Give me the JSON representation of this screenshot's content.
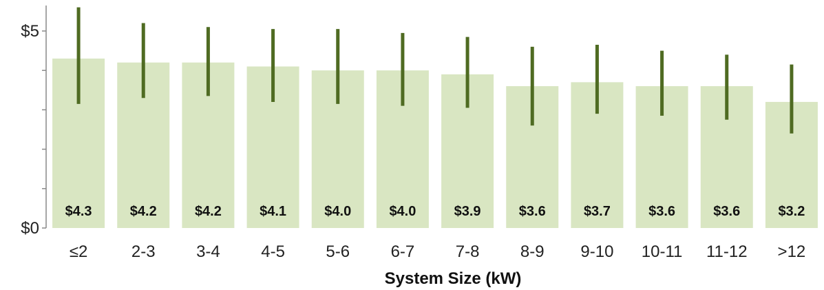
{
  "chart_data": {
    "type": "bar",
    "title": "",
    "xlabel": "System Size (kW)",
    "ylabel": "",
    "ylim": [
      0,
      5.6
    ],
    "yticks": [
      0,
      1,
      2,
      3,
      4,
      5
    ],
    "ytick_labels": [
      "$0",
      "",
      "",
      "",
      "",
      "$5"
    ],
    "grid": false,
    "legend": "none",
    "categories": [
      "≤2",
      "2-3",
      "3-4",
      "4-5",
      "5-6",
      "6-7",
      "7-8",
      "8-9",
      "9-10",
      "10-11",
      "11-12",
      ">12"
    ],
    "values": [
      4.3,
      4.2,
      4.2,
      4.1,
      4.0,
      4.0,
      3.9,
      3.6,
      3.7,
      3.6,
      3.6,
      3.2
    ],
    "data_labels": [
      "$4.3",
      "$4.2",
      "$4.2",
      "$4.1",
      "$4.0",
      "$4.0",
      "$3.9",
      "$3.6",
      "$3.7",
      "$3.6",
      "$3.6",
      "$3.2"
    ],
    "error_low": [
      3.15,
      3.3,
      3.35,
      3.2,
      3.15,
      3.1,
      3.05,
      2.6,
      2.9,
      2.85,
      2.75,
      2.4
    ],
    "error_high": [
      5.6,
      5.2,
      5.1,
      5.05,
      5.05,
      4.95,
      4.85,
      4.6,
      4.65,
      4.5,
      4.4,
      4.15
    ],
    "colors": {
      "bar": "#d9e6c2",
      "error_bar": "#4f6b22",
      "axis": "#888888"
    }
  }
}
